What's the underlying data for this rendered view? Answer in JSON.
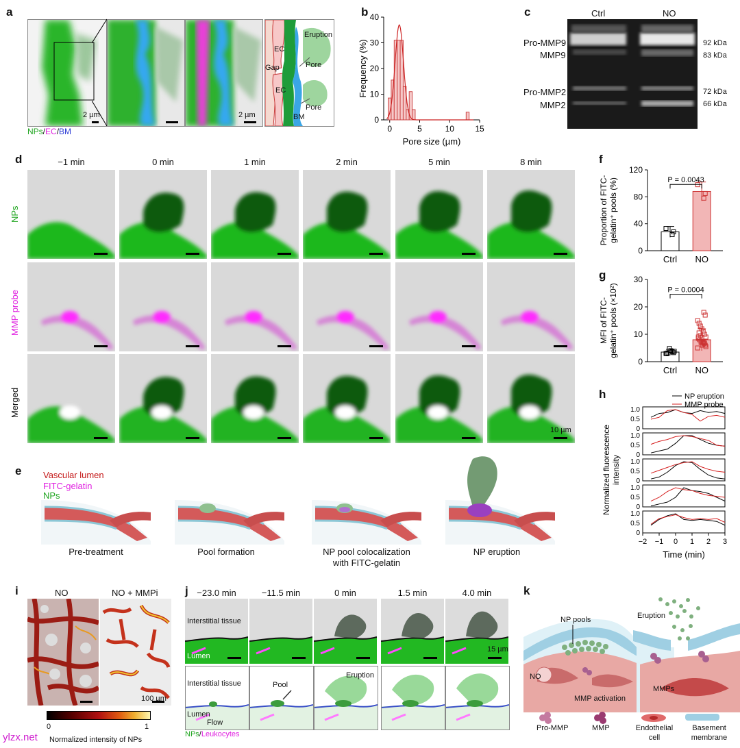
{
  "panel_a": {
    "letter": "a",
    "scale_1": "2 µm",
    "scale_2": "2 µm",
    "legend": [
      "NPs",
      "EC",
      "BM"
    ],
    "diagram_labels": [
      "Eruption",
      "EC",
      "Gap",
      "Pore",
      "EC",
      "Pore",
      "BM"
    ]
  },
  "panel_b": {
    "letter": "b"
  },
  "panel_c": {
    "letter": "c",
    "lanes": [
      "Ctrl",
      "NO"
    ],
    "left_labels": [
      "Pro-MMP9",
      "MMP9",
      "Pro-MMP2",
      "MMP2"
    ],
    "right_labels": [
      "92 kDa",
      "83 kDa",
      "72 kDa",
      "66 kDa"
    ]
  },
  "panel_d": {
    "letter": "d",
    "times": [
      "−1 min",
      "0 min",
      "1 min",
      "2 min",
      "5 min",
      "8 min"
    ],
    "rows": [
      "NPs",
      "MMP probe",
      "Merged"
    ],
    "scale": "10 µm"
  },
  "panel_e": {
    "letter": "e",
    "legend": [
      "Vascular lumen",
      "FITC-gelatin",
      "NPs"
    ],
    "steps": [
      "Pre-treatment",
      "Pool formation",
      "NP pool colocalization",
      "with FITC-gelatin",
      "NP eruption"
    ]
  },
  "panel_f": {
    "letter": "f"
  },
  "panel_g": {
    "letter": "g"
  },
  "panel_h": {
    "letter": "h"
  },
  "panel_i": {
    "letter": "i",
    "titles": [
      "NO",
      "NO + MMPi"
    ],
    "scale": "100 µm",
    "colorbar_min": "0",
    "colorbar_max": "1",
    "colorbar_label": "Normalized intensity of NPs"
  },
  "panel_j": {
    "letter": "j",
    "times": [
      "−23.0 min",
      "−11.5 min",
      "0 min",
      "1.5 min",
      "4.0 min"
    ],
    "top_labels": [
      "Interstitial tissue",
      "Lumen"
    ],
    "scale": "15 µm",
    "bottom_labels": [
      "Interstitial tissue",
      "Lumen",
      "Flow",
      "Pool",
      "Eruption"
    ],
    "legend": [
      "NPs",
      "Leukocytes"
    ]
  },
  "panel_k": {
    "letter": "k",
    "labels": [
      "NP pools",
      "Eruption",
      "NO",
      "MMPs",
      "MMP activation"
    ],
    "legend": [
      "Pro-MMP",
      "MMP",
      "Endothelial",
      "cell",
      "Basement",
      "membrane"
    ]
  },
  "watermark": "ylzx.net",
  "chart_data": [
    {
      "type": "bar",
      "panel": "b",
      "xlabel": "Pore size (µm)",
      "ylabel": "Frequency (%)",
      "xlim": [
        -1,
        15
      ],
      "ylim": [
        0,
        40
      ],
      "xticks": [
        0,
        5,
        10,
        15
      ],
      "yticks": [
        0,
        10,
        20,
        30,
        40
      ],
      "bin_width": 0.5,
      "bins": [
        {
          "x": 0,
          "y": 8.5
        },
        {
          "x": 0.5,
          "y": 15.5
        },
        {
          "x": 1,
          "y": 31
        },
        {
          "x": 1.5,
          "y": 31
        },
        {
          "x": 2,
          "y": 31
        },
        {
          "x": 2.5,
          "y": 13
        },
        {
          "x": 3,
          "y": 4
        },
        {
          "x": 3.5,
          "y": 11
        },
        {
          "x": 4,
          "y": 4
        },
        {
          "x": 13,
          "y": 3
        }
      ],
      "fit_curve": "gaussian",
      "fit_peak": {
        "x": 1.6,
        "y": 37
      }
    },
    {
      "type": "bar",
      "panel": "f",
      "categories": [
        "Ctrl",
        "NO"
      ],
      "values": [
        28,
        88
      ],
      "errors": [
        8,
        14
      ],
      "points": [
        [
          33,
          28,
          24
        ],
        [
          98,
          85,
          78
        ]
      ],
      "ylabel": "Proportion of FITC-gelatin⁺ pools (%)",
      "ylim": [
        0,
        120
      ],
      "yticks": [
        0,
        40,
        80,
        120
      ],
      "annotation": "P = 0.0043",
      "colors": [
        "#ffffff",
        "#f2b6b6"
      ]
    },
    {
      "type": "bar",
      "panel": "g",
      "categories": [
        "Ctrl",
        "NO"
      ],
      "values": [
        3.5,
        8
      ],
      "errors": [
        1,
        4
      ],
      "points": [
        [
          3.0,
          3.3,
          3.6,
          4.0,
          4.8,
          3.2,
          2.9,
          3.8
        ],
        [
          5,
          6,
          6.5,
          7,
          7.5,
          8,
          8.5,
          9,
          10,
          11,
          12,
          13,
          14,
          15,
          17,
          18,
          6,
          7,
          8,
          9,
          5.5,
          6.8,
          7.2,
          8.8,
          9.5,
          10.5
        ]
      ],
      "ylabel": "MFI of FITC-gelatin⁺ pools (×10²)",
      "ylim": [
        0,
        30
      ],
      "yticks": [
        0,
        10,
        20,
        30
      ],
      "annotation": "P = 0.0004",
      "colors": [
        "#ffffff",
        "#f2b6b6"
      ]
    },
    {
      "type": "line",
      "panel": "h",
      "xlabel": "Time (min)",
      "ylabel": "Normalized fluorescence intensity",
      "x": [
        -1.5,
        -1,
        -0.5,
        0,
        0.5,
        1,
        1.5,
        2,
        2.5,
        3
      ],
      "xticks": [
        -2,
        -1,
        0,
        1,
        2,
        3
      ],
      "yticks": [
        0,
        0.5,
        1.0
      ],
      "legend": [
        "NP eruption",
        "MMP probe"
      ],
      "colors": [
        "#000000",
        "#d62020"
      ],
      "subplots": [
        {
          "eruption": [
            0.6,
            0.8,
            0.85,
            1.0,
            0.85,
            0.8,
            0.95,
            0.85,
            0.9,
            0.8
          ],
          "probe": [
            0.5,
            0.6,
            0.95,
            1.0,
            0.85,
            0.75,
            0.4,
            0.65,
            0.7,
            0.6
          ]
        },
        {
          "eruption": [
            0.1,
            0.2,
            0.3,
            0.6,
            1.0,
            1.0,
            0.8,
            0.6,
            0.5,
            0.45
          ],
          "probe": [
            0.55,
            0.7,
            0.8,
            0.95,
            1.0,
            0.95,
            0.85,
            0.75,
            0.5,
            0.45
          ]
        },
        {
          "eruption": [
            0.1,
            0.2,
            0.45,
            0.8,
            1.0,
            0.95,
            0.6,
            0.3,
            0.15,
            0.1
          ],
          "probe": [
            0.4,
            0.55,
            0.7,
            0.85,
            0.95,
            1.0,
            0.75,
            0.6,
            0.5,
            0.45
          ]
        },
        {
          "eruption": [
            0.05,
            0.15,
            0.25,
            0.5,
            1.0,
            0.85,
            0.8,
            0.7,
            0.5,
            0.3
          ],
          "probe": [
            0.3,
            0.5,
            0.8,
            1.0,
            0.9,
            0.85,
            0.7,
            0.6,
            0.55,
            0.5
          ]
        },
        {
          "eruption": [
            0.4,
            0.7,
            0.9,
            1.0,
            0.7,
            0.65,
            0.7,
            0.65,
            0.6,
            0.4
          ],
          "probe": [
            0.45,
            0.75,
            0.85,
            0.95,
            0.8,
            0.7,
            0.75,
            0.7,
            0.75,
            0.55
          ]
        }
      ]
    }
  ]
}
